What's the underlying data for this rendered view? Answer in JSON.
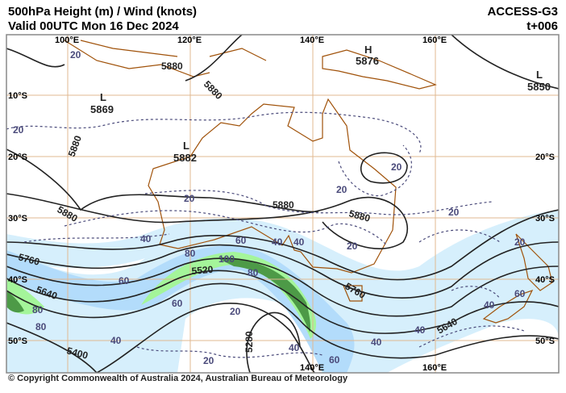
{
  "header": {
    "title": "500hPa Height (m) / Wind (knots)",
    "valid": "Valid 00UTC Mon 16 Dec 2024",
    "model": "ACCESS-G3",
    "lead": "t+006"
  },
  "grid": {
    "lon_top": [
      "100°E",
      "120°E",
      "140°E",
      "160°E"
    ],
    "lon_bottom": [
      "140°E",
      "160°E"
    ],
    "lat_left": [
      "10°S",
      "20°S",
      "30°S",
      "40°S",
      "50°S"
    ],
    "lat_right": [
      "20°S",
      "30°S",
      "40°S",
      "50°S"
    ]
  },
  "centres": [
    {
      "type": "H",
      "value": "5876"
    },
    {
      "type": "L",
      "value": "5850"
    },
    {
      "type": "L",
      "value": "5869"
    },
    {
      "type": "L",
      "value": "5882"
    }
  ],
  "height_labels": [
    "5880",
    "5880",
    "5880",
    "5880",
    "5880",
    "5880",
    "5760",
    "5640",
    "5520",
    "5400",
    "5280",
    "5760",
    "5640"
  ],
  "isotach_labels": [
    "20",
    "20",
    "20",
    "20",
    "20",
    "20",
    "20",
    "20",
    "20",
    "40",
    "40",
    "40",
    "40",
    "40",
    "40",
    "40",
    "60",
    "60",
    "60",
    "60",
    "60",
    "80",
    "80",
    "80",
    "80",
    "100",
    "20",
    "40"
  ],
  "colors": {
    "height_contour": "#222222",
    "isotach": "#4a4a7a",
    "wind_20_40": "#d6effc",
    "wind_60_80": "#b3dcfb",
    "wind_80_100": "#a4f59a",
    "wind_100_plus": "#4d9a47",
    "coastline": "#a0520a",
    "graticule": "#e0b890"
  },
  "copyright": "© Copyright Commonwealth of Australia 2024, Australian Bureau of Meteorology"
}
